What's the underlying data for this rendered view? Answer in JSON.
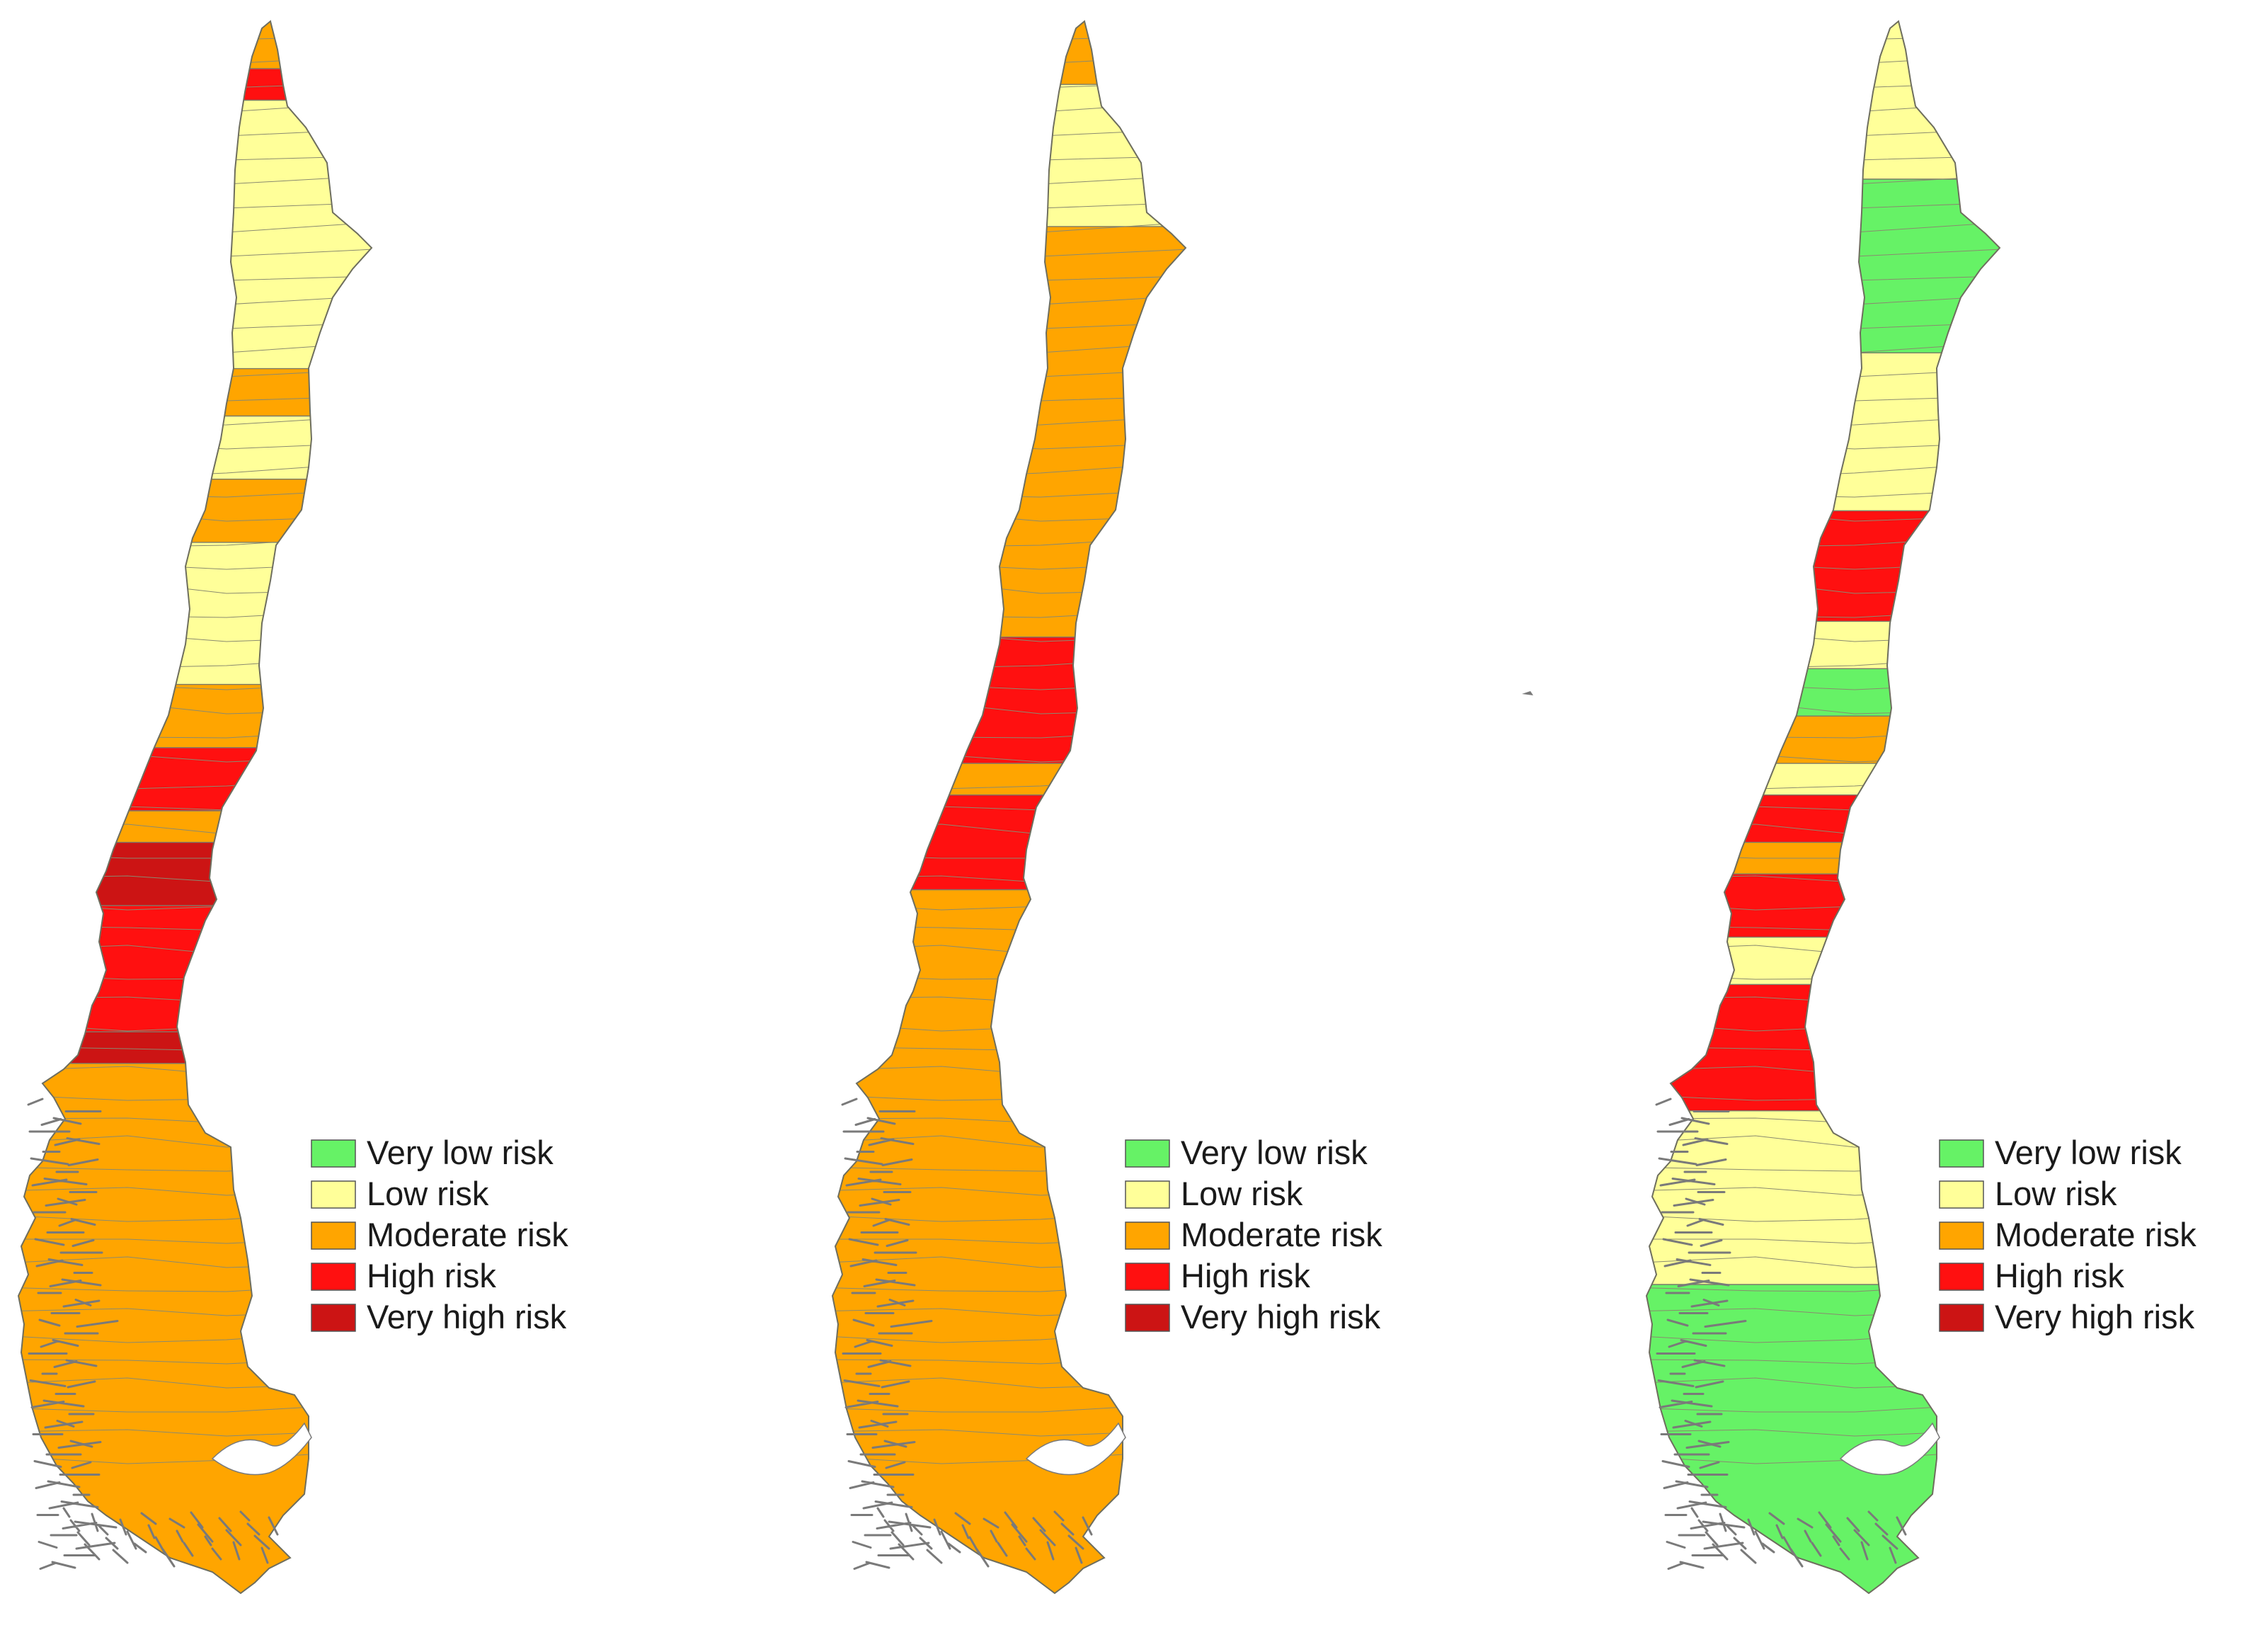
{
  "colors": {
    "very_low": "#66f266",
    "low": "#ffff99",
    "moderate": "#ffa500",
    "high": "#ff1010",
    "very_high": "#cc1414"
  },
  "legend": [
    {
      "key": "very_low",
      "label": "Very low risk"
    },
    {
      "key": "low",
      "label": "Low risk"
    },
    {
      "key": "moderate",
      "label": "Moderate risk"
    },
    {
      "key": "high",
      "label": "High risk"
    },
    {
      "key": "very_high",
      "label": "Very high risk"
    }
  ],
  "maps": [
    {
      "id": "map-1",
      "bands": [
        {
          "from": 0.0,
          "to": 0.03,
          "risk": "moderate"
        },
        {
          "from": 0.03,
          "to": 0.05,
          "risk": "high"
        },
        {
          "from": 0.05,
          "to": 0.22,
          "risk": "low"
        },
        {
          "from": 0.22,
          "to": 0.25,
          "risk": "moderate"
        },
        {
          "from": 0.25,
          "to": 0.29,
          "risk": "low"
        },
        {
          "from": 0.29,
          "to": 0.33,
          "risk": "moderate"
        },
        {
          "from": 0.33,
          "to": 0.42,
          "risk": "low"
        },
        {
          "from": 0.42,
          "to": 0.46,
          "risk": "moderate"
        },
        {
          "from": 0.46,
          "to": 0.5,
          "risk": "high"
        },
        {
          "from": 0.5,
          "to": 0.52,
          "risk": "moderate"
        },
        {
          "from": 0.52,
          "to": 0.56,
          "risk": "very_high"
        },
        {
          "from": 0.56,
          "to": 0.64,
          "risk": "high"
        },
        {
          "from": 0.64,
          "to": 0.66,
          "risk": "very_high"
        },
        {
          "from": 0.66,
          "to": 1.0,
          "risk": "moderate"
        }
      ]
    },
    {
      "id": "map-2",
      "bands": [
        {
          "from": 0.0,
          "to": 0.04,
          "risk": "moderate"
        },
        {
          "from": 0.04,
          "to": 0.13,
          "risk": "low"
        },
        {
          "from": 0.13,
          "to": 0.39,
          "risk": "moderate"
        },
        {
          "from": 0.39,
          "to": 0.47,
          "risk": "high"
        },
        {
          "from": 0.47,
          "to": 0.49,
          "risk": "moderate"
        },
        {
          "from": 0.49,
          "to": 0.55,
          "risk": "high"
        },
        {
          "from": 0.55,
          "to": 1.0,
          "risk": "moderate"
        }
      ]
    },
    {
      "id": "map-3",
      "bands": [
        {
          "from": 0.0,
          "to": 0.1,
          "risk": "low"
        },
        {
          "from": 0.1,
          "to": 0.21,
          "risk": "very_low"
        },
        {
          "from": 0.21,
          "to": 0.31,
          "risk": "low"
        },
        {
          "from": 0.31,
          "to": 0.38,
          "risk": "high"
        },
        {
          "from": 0.38,
          "to": 0.41,
          "risk": "low"
        },
        {
          "from": 0.41,
          "to": 0.44,
          "risk": "very_low"
        },
        {
          "from": 0.44,
          "to": 0.47,
          "risk": "moderate"
        },
        {
          "from": 0.47,
          "to": 0.49,
          "risk": "low"
        },
        {
          "from": 0.49,
          "to": 0.52,
          "risk": "high"
        },
        {
          "from": 0.52,
          "to": 0.54,
          "risk": "moderate"
        },
        {
          "from": 0.54,
          "to": 0.58,
          "risk": "high"
        },
        {
          "from": 0.58,
          "to": 0.61,
          "risk": "low"
        },
        {
          "from": 0.61,
          "to": 0.69,
          "risk": "high"
        },
        {
          "from": 0.69,
          "to": 0.8,
          "risk": "low"
        },
        {
          "from": 0.8,
          "to": 1.0,
          "risk": "very_low"
        }
      ]
    }
  ]
}
